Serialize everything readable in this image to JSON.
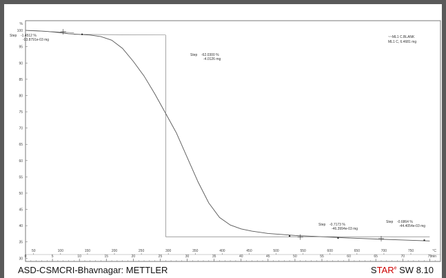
{
  "footer": {
    "left": "ASD-CSMCRI-Bhavnagar: METTLER",
    "brand_s": "S",
    "brand_tar": "TAR",
    "brand_reg": "e",
    "brand_version": "SW 8.10"
  },
  "chart_data": {
    "type": "line",
    "y_unit": "%",
    "x_unit_temp": "°C",
    "x_unit_time": "min",
    "ylim": [
      29,
      103
    ],
    "xlim_time": [
      0,
      77
    ],
    "y_ticks": [
      30,
      35,
      40,
      45,
      50,
      55,
      60,
      65,
      70,
      75,
      80,
      85,
      90,
      95,
      100
    ],
    "time_ticks": [
      0,
      5,
      10,
      15,
      20,
      25,
      30,
      35,
      40,
      45,
      50,
      55,
      60,
      65,
      70,
      75
    ],
    "temp_ticks": [
      {
        "t": 1.5,
        "label": "50"
      },
      {
        "t": 6.5,
        "label": "100"
      },
      {
        "t": 11.5,
        "label": "150"
      },
      {
        "t": 16.5,
        "label": "200"
      },
      {
        "t": 21.5,
        "label": "250"
      },
      {
        "t": 26.5,
        "label": "300"
      },
      {
        "t": 31.5,
        "label": "350"
      },
      {
        "t": 36.5,
        "label": "400"
      },
      {
        "t": 41.5,
        "label": "450"
      },
      {
        "t": 46.5,
        "label": "500"
      },
      {
        "t": 51.5,
        "label": "550"
      },
      {
        "t": 56.5,
        "label": "600"
      },
      {
        "t": 61.5,
        "label": "650"
      },
      {
        "t": 66.5,
        "label": "700"
      },
      {
        "t": 71.5,
        "label": "750"
      }
    ],
    "series": [
      {
        "legend_lines": [
          "~~ML1 C.BLANK",
          "ML1 C, 6.4681 mg"
        ],
        "color": "#555555",
        "x": [
          0,
          2,
          4,
          6,
          8,
          10,
          12,
          14,
          16,
          18,
          20,
          22,
          24,
          26,
          28,
          30,
          32,
          34,
          36,
          38,
          40,
          42,
          45,
          50,
          55,
          60,
          65,
          70,
          75
        ],
        "y": [
          100,
          99.9,
          99.7,
          99.4,
          99.0,
          98.8,
          98.6,
          98.1,
          97.0,
          94.5,
          90.5,
          86.0,
          80.5,
          74.5,
          68.5,
          61.0,
          53.5,
          47.0,
          42.5,
          40.2,
          39.0,
          38.3,
          37.6,
          37.0,
          36.6,
          36.2,
          35.9,
          35.6,
          35.3
        ]
      }
    ],
    "steps": [
      {
        "title": "Step",
        "value": "-1.4512 %",
        "mass": "-93.8791e-03 mg"
      },
      {
        "title": "Step",
        "value": "-62.0300 %",
        "mass": "-4.0126 mg"
      },
      {
        "title": "Step",
        "value": "-0.7173 %",
        "mass": "-46.3994e-03 mg"
      },
      {
        "title": "Step",
        "value": "-0.6864 %",
        "mass": "-44.4054e-03 mg"
      }
    ]
  }
}
